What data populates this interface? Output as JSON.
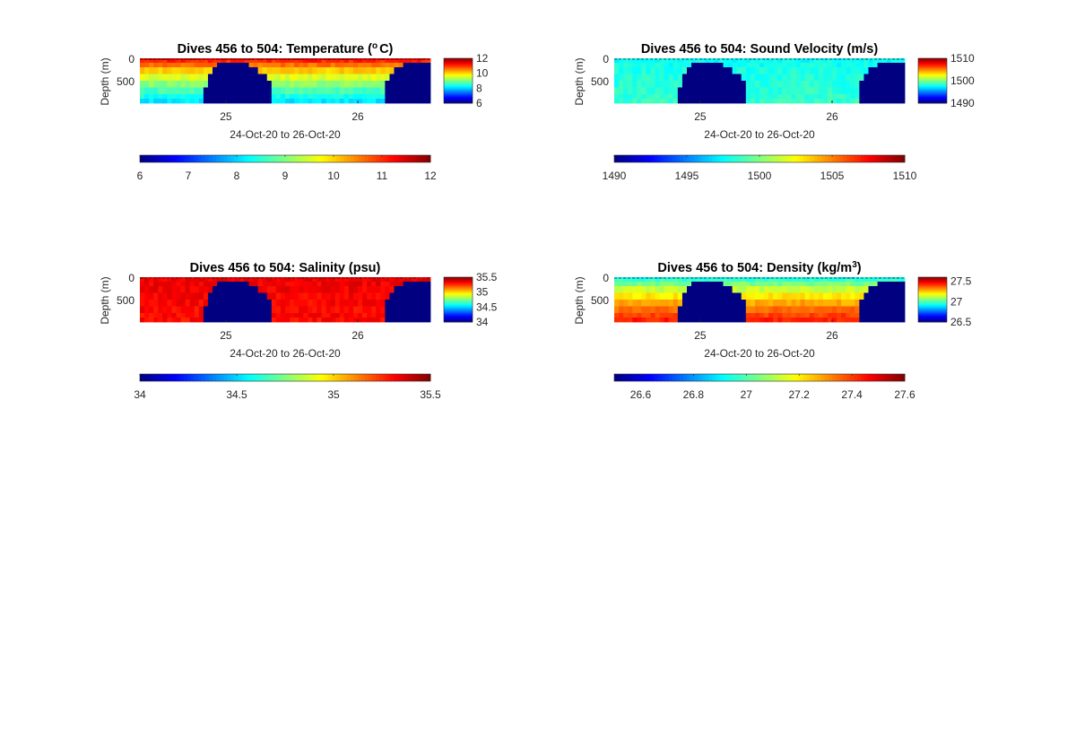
{
  "chart_data": [
    {
      "type": "heatmap",
      "title": "Dives 456 to 504: Temperature (",
      "title_unit": "C)",
      "title_sup": "o",
      "xlabel": "24-Oct-20 to 26-Oct-20",
      "ylabel": "Depth (m)",
      "x_ticks": [
        "25",
        "26"
      ],
      "y_ticks": [
        "0",
        "500"
      ],
      "xlim": [
        "24-Oct-20 10:00",
        "26-Oct-20 14:00"
      ],
      "ylim": [
        0,
        1000
      ],
      "colormap": "jet",
      "clim": [
        6,
        12
      ],
      "colorbar_ticks": [
        "12",
        "10",
        "8",
        "6"
      ],
      "hcolorbar_ticks": [
        "6",
        "7",
        "8",
        "9",
        "10",
        "11",
        "12"
      ],
      "surface_value": 11.8,
      "bottom_value": 8.0,
      "data_gaps_shown_as_min": true
    },
    {
      "type": "heatmap",
      "title": "Dives 456 to 504: Sound Velocity (m/s)",
      "xlabel": "24-Oct-20 to 26-Oct-20",
      "ylabel": "Depth (m)",
      "x_ticks": [
        "25",
        "26"
      ],
      "y_ticks": [
        "0",
        "500"
      ],
      "xlim": [
        "24-Oct-20 10:00",
        "26-Oct-20 14:00"
      ],
      "ylim": [
        0,
        1000
      ],
      "colormap": "jet",
      "clim": [
        1490,
        1510
      ],
      "colorbar_ticks": [
        "1510",
        "1500",
        "1490"
      ],
      "hcolorbar_ticks": [
        "1490",
        "1495",
        "1500",
        "1505",
        "1510"
      ],
      "surface_value": 1497.5,
      "bottom_value": 1498.5,
      "data_gaps_shown_as_min": true
    },
    {
      "type": "heatmap",
      "title": "Dives 456 to 504: Salinity (psu)",
      "xlabel": "24-Oct-20 to 26-Oct-20",
      "ylabel": "Depth (m)",
      "x_ticks": [
        "25",
        "26"
      ],
      "y_ticks": [
        "0",
        "500"
      ],
      "xlim": [
        "24-Oct-20 10:00",
        "26-Oct-20 14:00"
      ],
      "ylim": [
        0,
        1000
      ],
      "colormap": "jet",
      "clim": [
        34,
        35.5
      ],
      "colorbar_ticks": [
        "35.5",
        "35",
        "34.5",
        "34"
      ],
      "hcolorbar_ticks": [
        "34",
        "34.5",
        "35",
        "35.5"
      ],
      "surface_value": 35.35,
      "bottom_value": 35.3,
      "data_gaps_shown_as_min": true
    },
    {
      "type": "heatmap",
      "title": "Dives 456 to 504: Density (kg/m",
      "title_unit": ")",
      "title_sup": "3",
      "xlabel": "24-Oct-20 to 26-Oct-20",
      "ylabel": "Depth (m)",
      "x_ticks": [
        "25",
        "26"
      ],
      "y_ticks": [
        "0",
        "500"
      ],
      "xlim": [
        "24-Oct-20 10:00",
        "26-Oct-20 14:00"
      ],
      "ylim": [
        0,
        1000
      ],
      "colormap": "jet",
      "clim": [
        26.5,
        27.6
      ],
      "colorbar_ticks": [
        "27.5",
        "27",
        "26.5"
      ],
      "hcolorbar_ticks": [
        "26.6",
        "26.8",
        "27",
        "27.2",
        "27.4",
        "27.6"
      ],
      "surface_value": 26.85,
      "bottom_value": 27.45,
      "data_gaps_shown_as_min": true
    }
  ]
}
